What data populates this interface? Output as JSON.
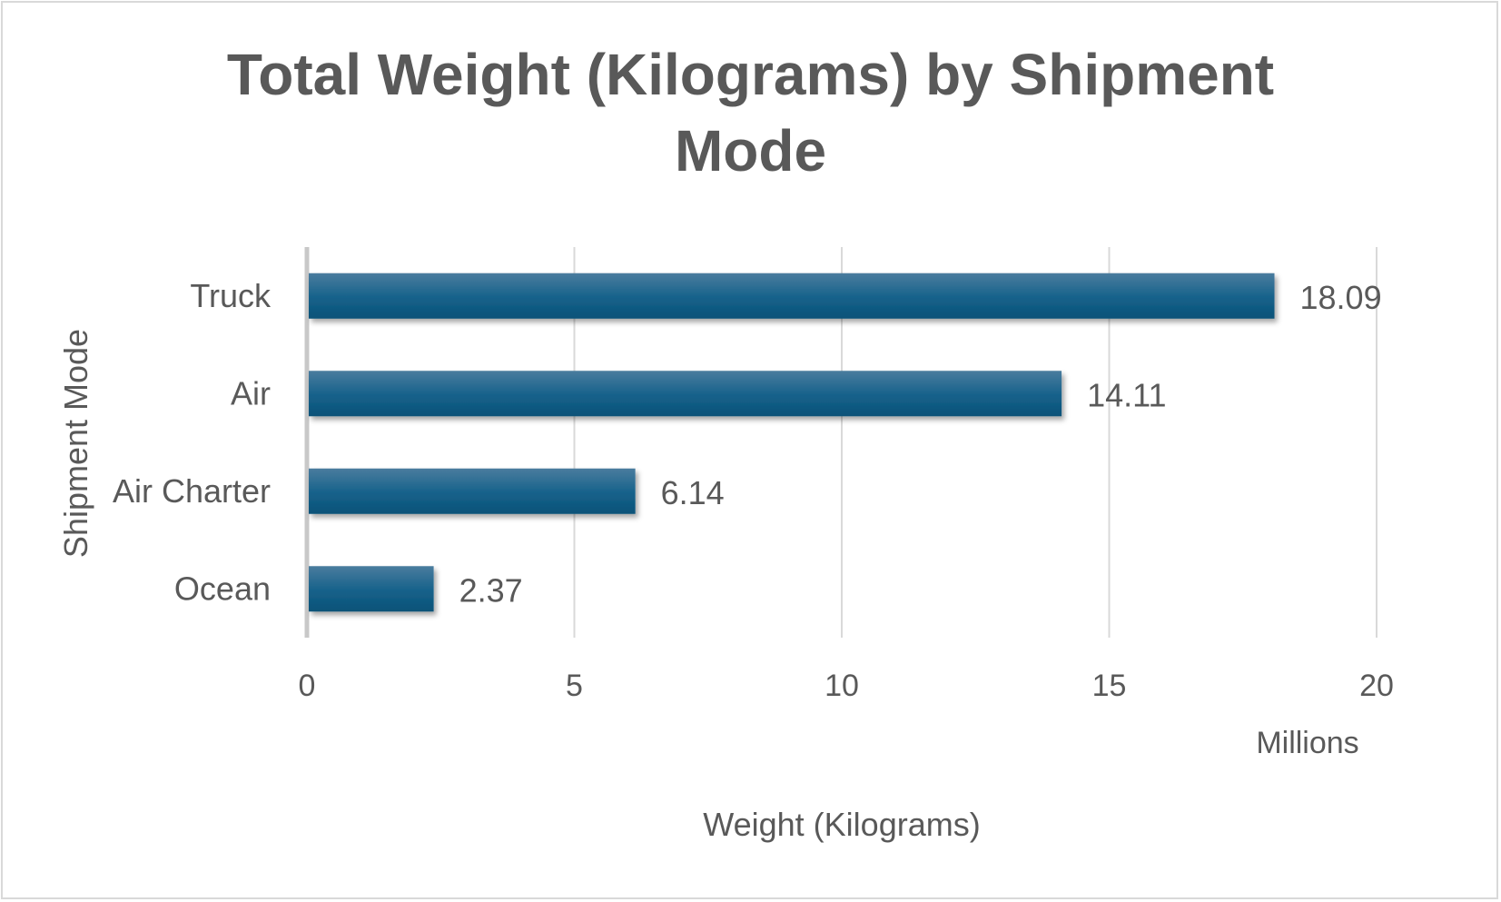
{
  "chart_data": {
    "type": "bar",
    "orientation": "horizontal",
    "title_lines": [
      "Total  Weight (Kilograms) by  Shipment",
      "Mode"
    ],
    "categories": [
      "Truck",
      "Air",
      "Air Charter",
      "Ocean"
    ],
    "values": [
      18.09,
      14.11,
      6.14,
      2.37
    ],
    "data_labels": [
      "18.09",
      "14.11",
      "6.14",
      "2.37"
    ],
    "xlabel": "Weight (Kilograms)",
    "ylabel": "Shipment Mode",
    "x_unit_label": "Millions",
    "xlim": [
      0,
      20
    ],
    "xticks": [
      0,
      5,
      10,
      15,
      20
    ],
    "xtick_labels": [
      "0",
      "5",
      "10",
      "15",
      "20"
    ],
    "grid": "vertical",
    "legend": "none",
    "bar_color": "#1a5f84"
  }
}
